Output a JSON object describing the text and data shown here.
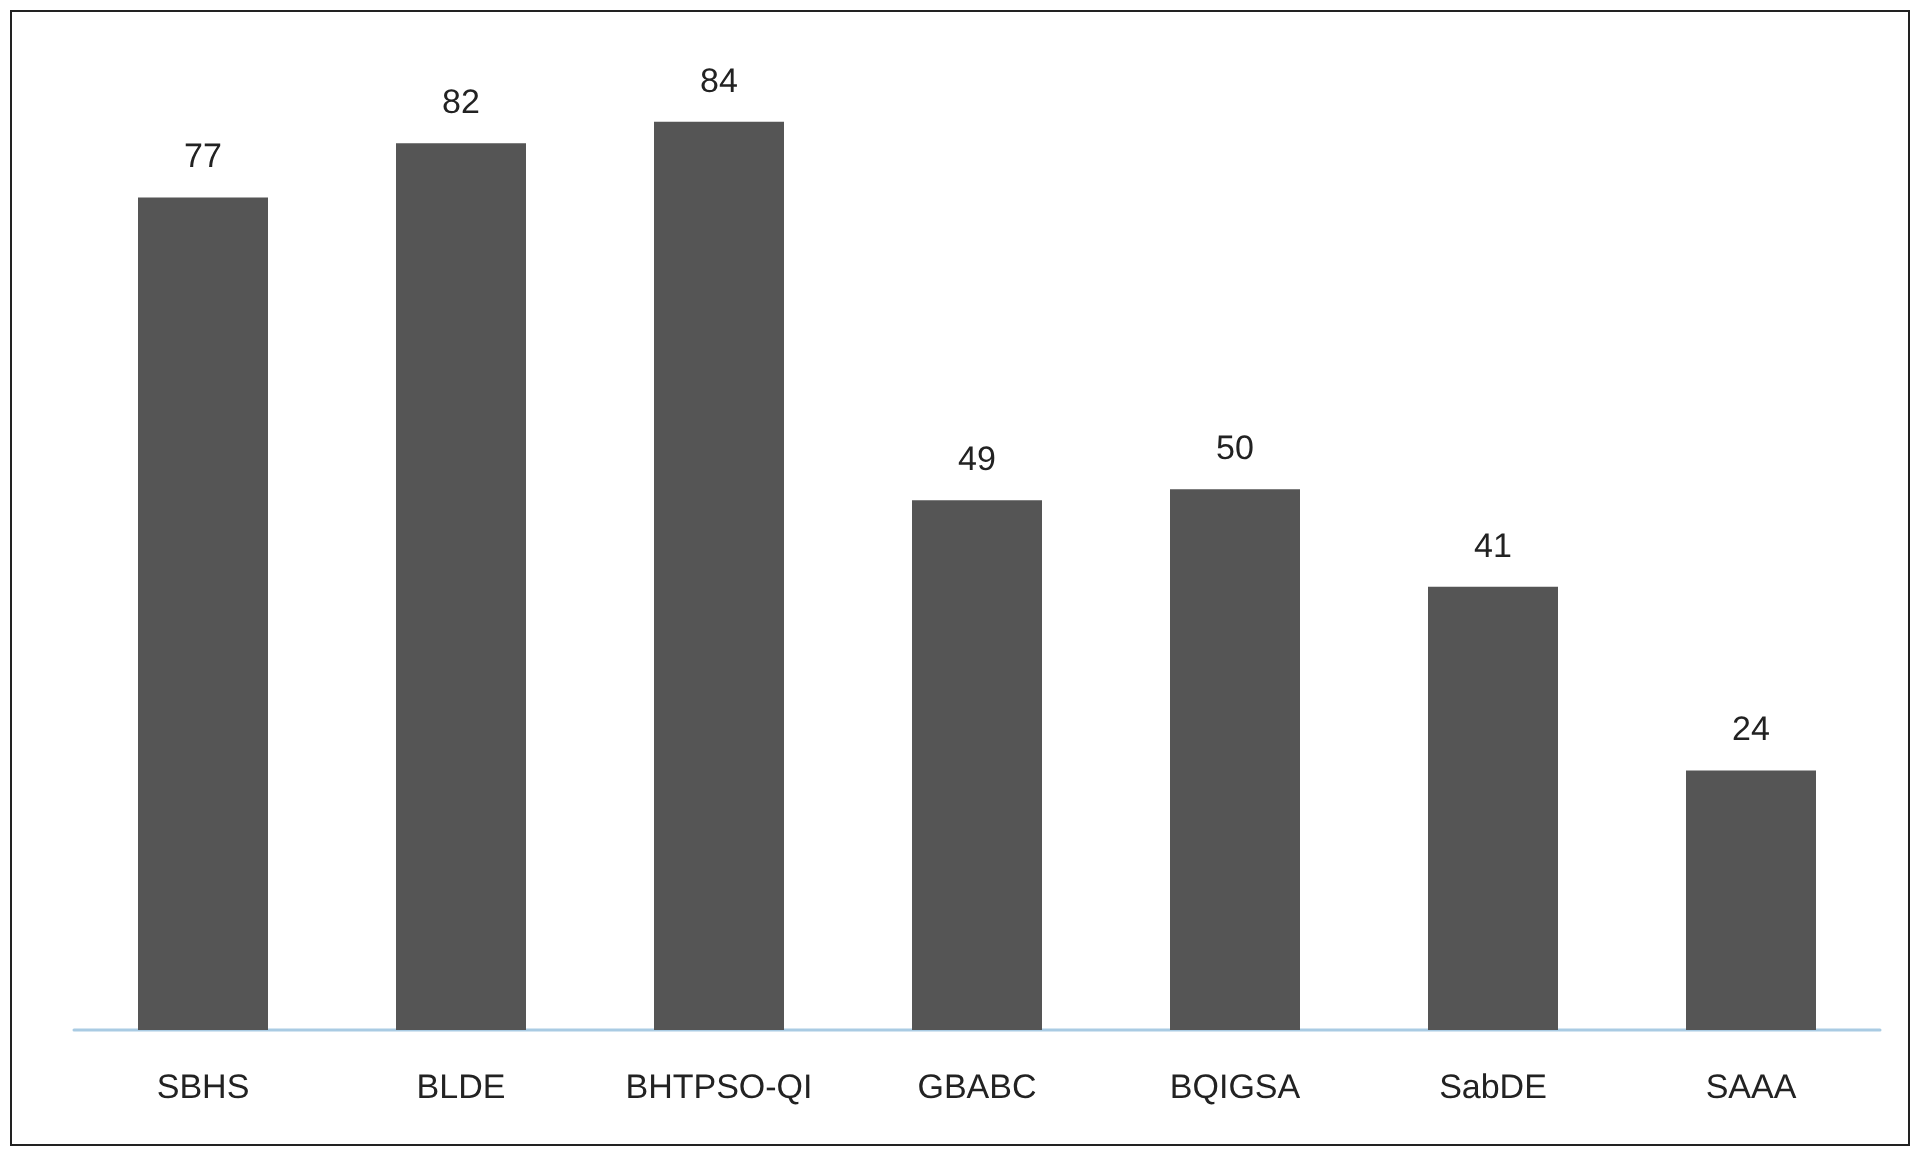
{
  "chart_data": {
    "type": "bar",
    "categories": [
      "SBHS",
      "BLDE",
      "BHTPSO-QI",
      "GBABC",
      "BQIGSA",
      "SabDE",
      "SAAA"
    ],
    "values": [
      77,
      82,
      84,
      49,
      50,
      41,
      24
    ],
    "color": "#555555",
    "data_labels": true
  }
}
